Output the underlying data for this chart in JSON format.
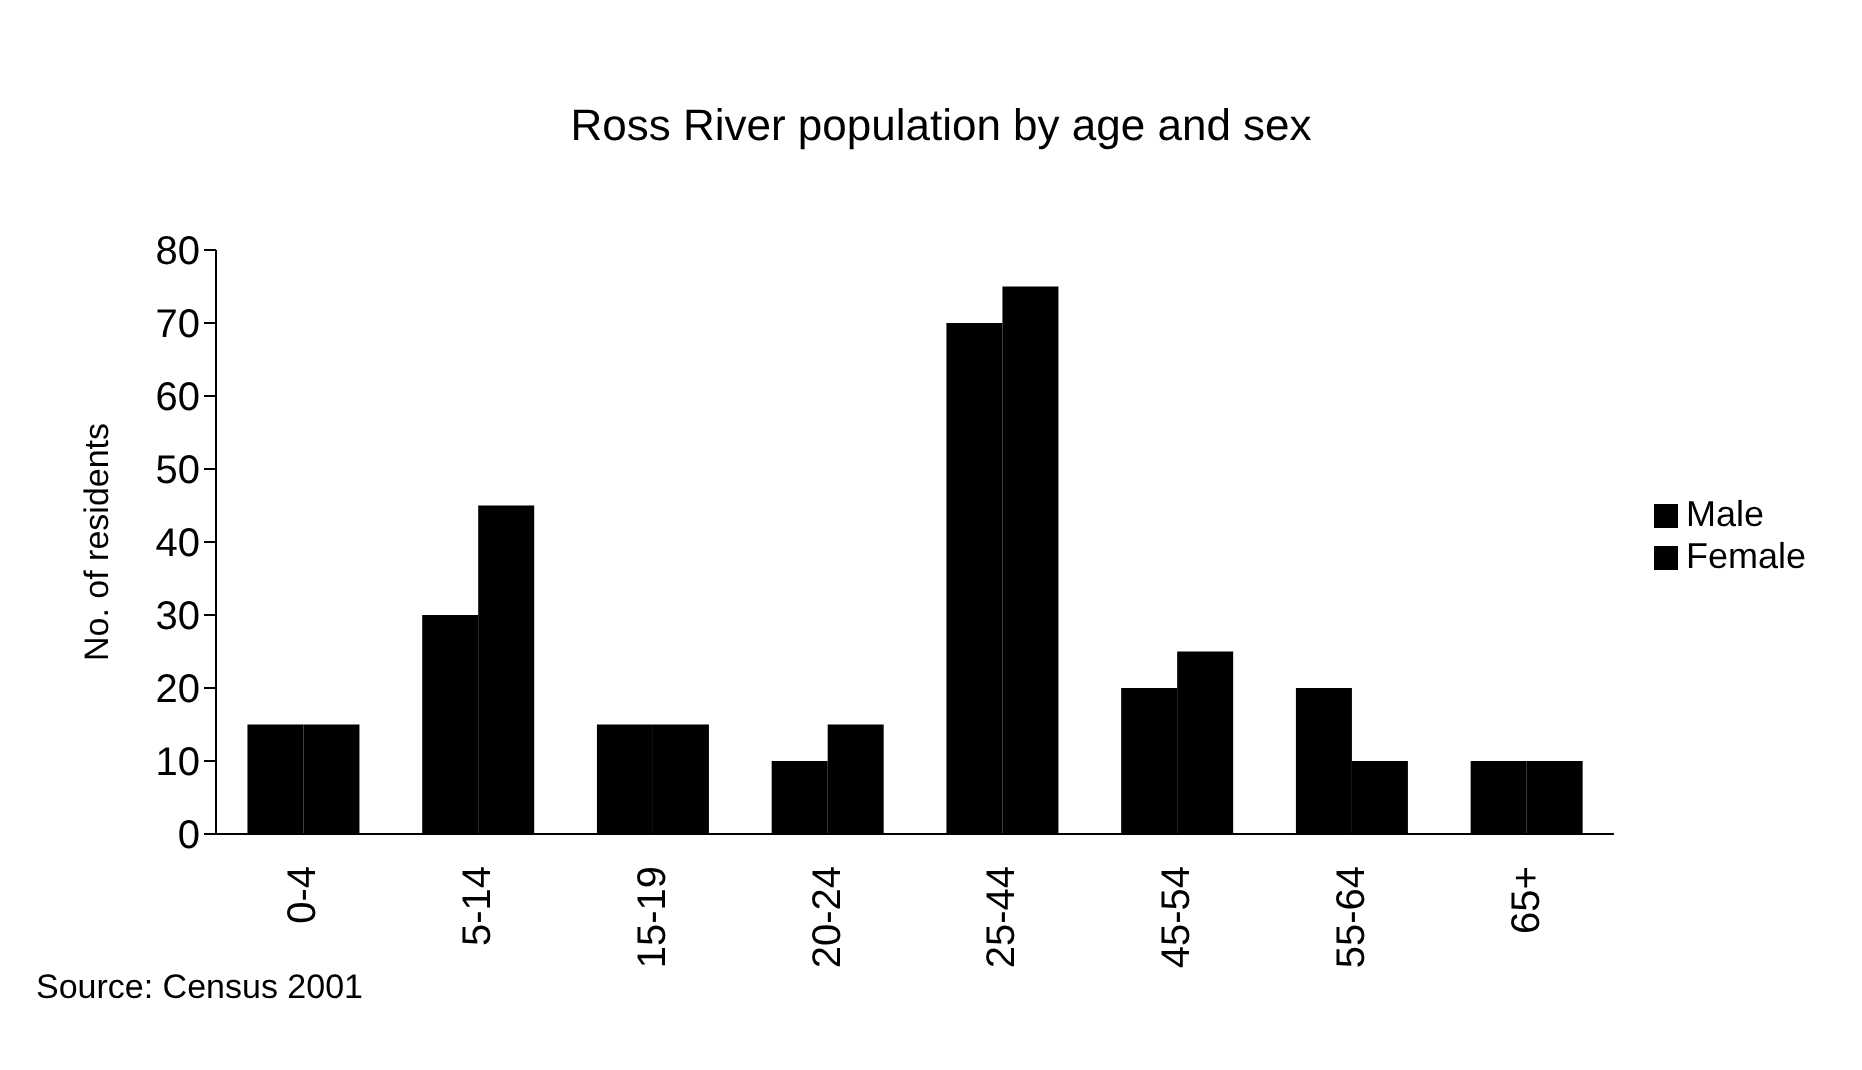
{
  "chart_data": {
    "type": "bar",
    "title": "Ross River population by age and sex",
    "ylabel": "No. of residents",
    "categories": [
      "0-4",
      "5-14",
      "15-19",
      "20-24",
      "25-44",
      "45-54",
      "55-64",
      "65+"
    ],
    "series": [
      {
        "name": "Male",
        "color": "#000000",
        "values": [
          15,
          30,
          15,
          10,
          70,
          20,
          20,
          10
        ]
      },
      {
        "name": "Female",
        "color": "#000000",
        "values": [
          15,
          45,
          15,
          15,
          75,
          25,
          10,
          10
        ]
      }
    ],
    "ylim": [
      0,
      80
    ],
    "yticks": [
      0,
      10,
      20,
      30,
      40,
      50,
      60,
      70,
      80
    ],
    "legend": "right",
    "grid": false,
    "annotations": [
      "Source: Census 2001"
    ]
  }
}
